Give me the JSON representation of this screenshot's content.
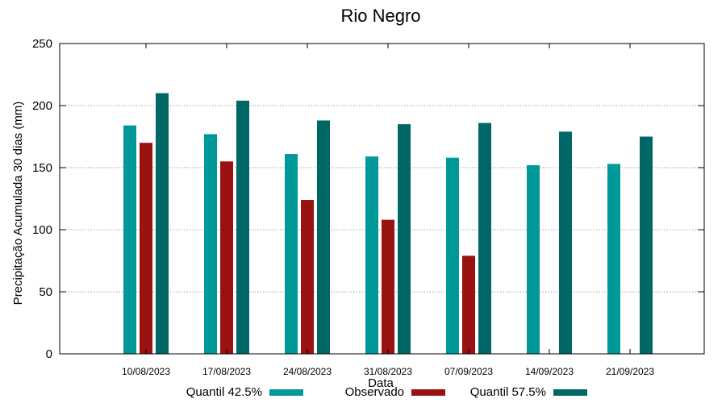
{
  "chart_data": {
    "type": "bar",
    "title": "Rio Negro",
    "xlabel": "Data",
    "ylabel": "Precipitação Acumulada 30 dias (mm)",
    "ylim": [
      0,
      250
    ],
    "yticks": [
      0,
      50,
      100,
      150,
      200,
      250
    ],
    "grid": true,
    "legend_position": "bottom",
    "categories": [
      "10/08/2023",
      "17/08/2023",
      "24/08/2023",
      "31/08/2023",
      "07/09/2023",
      "14/09/2023",
      "21/09/2023"
    ],
    "series": [
      {
        "name": "Quantil 42.5%",
        "color": "#009999",
        "values": [
          184,
          177,
          161,
          159,
          158,
          152,
          153
        ]
      },
      {
        "name": "Observado",
        "color": "#991111",
        "values": [
          170,
          155,
          124,
          108,
          79,
          null,
          null
        ]
      },
      {
        "name": "Quantil 57.5%",
        "color": "#006666",
        "values": [
          210,
          204,
          188,
          185,
          186,
          179,
          175
        ]
      }
    ]
  }
}
